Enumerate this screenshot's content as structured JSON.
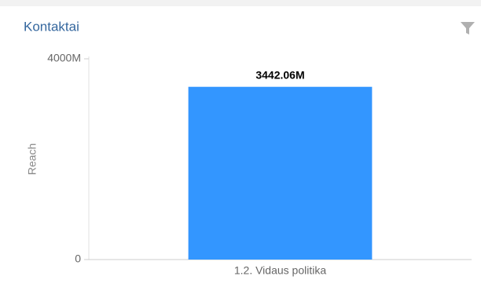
{
  "chart_data": {
    "type": "bar",
    "title": "Kontaktai",
    "y_label": "Reach",
    "categories": [
      "1.2. Vidaus politika"
    ],
    "values": [
      3442.06
    ],
    "value_labels": [
      "3442.06M"
    ],
    "color": "#3396ff",
    "ylim": [
      0,
      4000
    ],
    "yticks": [
      0,
      {
        "value": 4000,
        "label": "4000M"
      }
    ],
    "grid": false
  }
}
